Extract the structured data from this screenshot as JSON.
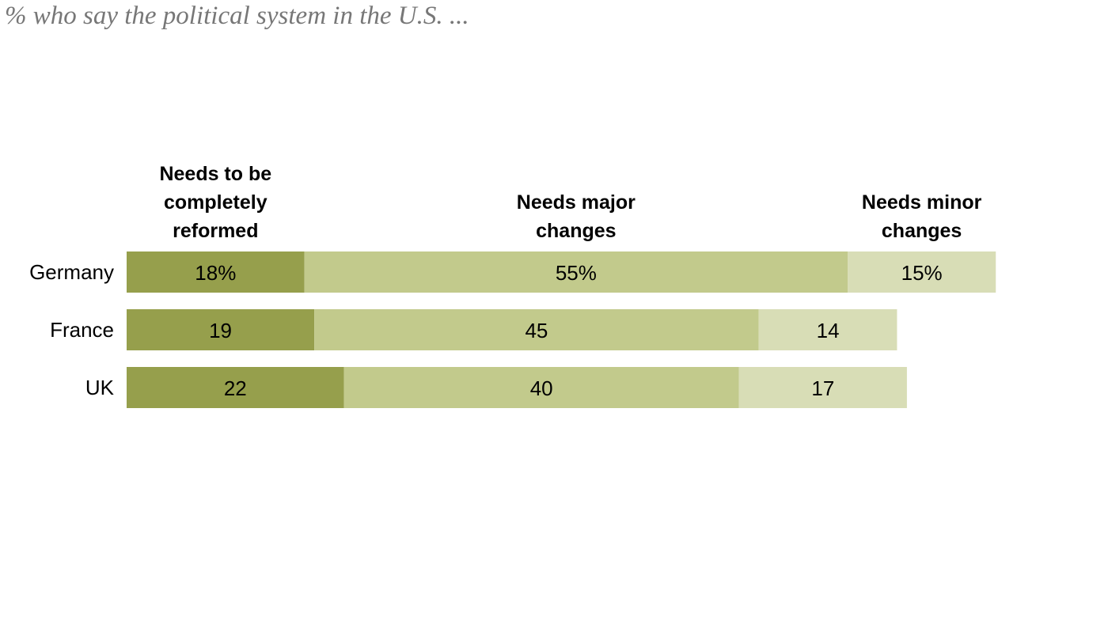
{
  "subtitle": "% who say the political system in the U.S. ...",
  "chart_data": {
    "type": "bar",
    "orientation": "horizontal",
    "stacked": true,
    "title": "",
    "subtitle": "% who say the political system in the U.S. ...",
    "categories": [
      "Germany",
      "France",
      "UK"
    ],
    "series": [
      {
        "name": "Needs to be completely reformed",
        "header_lines": [
          "Needs to be",
          "completely",
          "reformed"
        ],
        "values": [
          18,
          19,
          22
        ],
        "labels": [
          "18%",
          "19",
          "22"
        ],
        "color": "#969f4c"
      },
      {
        "name": "Needs major changes",
        "header_lines": [
          "Needs major",
          "changes"
        ],
        "values": [
          55,
          45,
          40
        ],
        "labels": [
          "55%",
          "45",
          "40"
        ],
        "color": "#c2ca8c"
      },
      {
        "name": "Needs minor changes",
        "header_lines": [
          "Needs minor",
          "changes"
        ],
        "values": [
          15,
          14,
          17
        ],
        "labels": [
          "15%",
          "14",
          "17"
        ],
        "color": "#d8ddb6"
      }
    ],
    "xlim": [
      0,
      100
    ],
    "xlabel": "",
    "ylabel": "",
    "grid": false,
    "legend": "top"
  }
}
